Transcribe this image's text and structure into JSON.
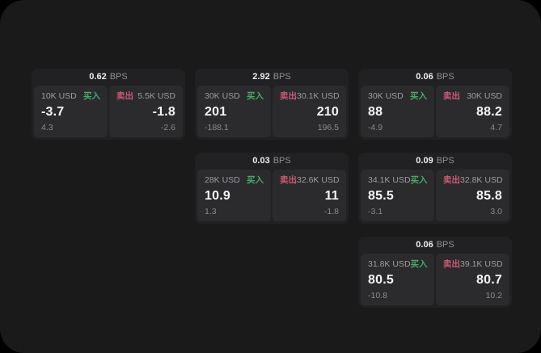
{
  "colors": {
    "screen_bg": "#1a1a1b",
    "card_bg": "#212124",
    "panel_bg": "#2b2b2e",
    "buy": "#4ba768",
    "sell": "#cc5a74",
    "text_primary": "#f4f4f5",
    "text_muted": "#8e8e91"
  },
  "labels": {
    "bps_unit": "BPS",
    "buy": "买入",
    "sell": "卖出"
  },
  "cards": [
    {
      "row": 1,
      "col": 1,
      "bps": "0.62",
      "buy": {
        "amount": "10K USD",
        "price": "-3.7",
        "delta": "4.3"
      },
      "sell": {
        "amount": "5.5K USD",
        "price": "-1.8",
        "delta": "-2.6"
      }
    },
    {
      "row": 1,
      "col": 2,
      "bps": "2.92",
      "buy": {
        "amount": "30K USD",
        "price": "201",
        "delta": "-188.1"
      },
      "sell": {
        "amount": "30.1K USD",
        "price": "210",
        "delta": "196.5"
      }
    },
    {
      "row": 1,
      "col": 3,
      "bps": "0.06",
      "buy": {
        "amount": "30K USD",
        "price": "88",
        "delta": "-4.9"
      },
      "sell": {
        "amount": "30K USD",
        "price": "88.2",
        "delta": "4.7"
      }
    },
    {
      "row": 2,
      "col": 2,
      "bps": "0.03",
      "buy": {
        "amount": "28K USD",
        "price": "10.9",
        "delta": "1.3"
      },
      "sell": {
        "amount": "32.6K USD",
        "price": "11",
        "delta": "-1.8"
      }
    },
    {
      "row": 2,
      "col": 3,
      "bps": "0.09",
      "buy": {
        "amount": "34.1K USD",
        "price": "85.5",
        "delta": "-3.1"
      },
      "sell": {
        "amount": "32.8K USD",
        "price": "85.8",
        "delta": "3.0"
      }
    },
    {
      "row": 3,
      "col": 3,
      "bps": "0.06",
      "buy": {
        "amount": "31.8K USD",
        "price": "80.5",
        "delta": "-10.8"
      },
      "sell": {
        "amount": "39.1K USD",
        "price": "80.7",
        "delta": "10.2"
      }
    }
  ]
}
